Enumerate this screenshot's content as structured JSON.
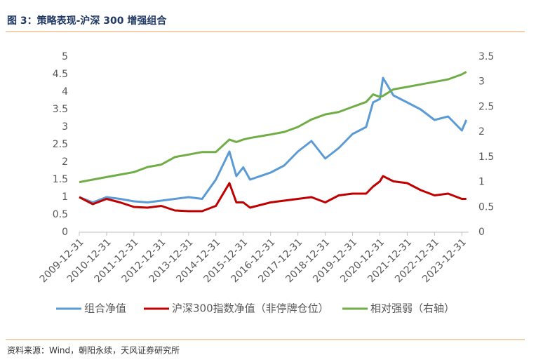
{
  "header": {
    "title": "图 3：策略表现-沪深 300 增强组合"
  },
  "footer": {
    "source": "资料来源：Wind，朝阳永续，天风证券研究所"
  },
  "chart_data": {
    "type": "line",
    "x": [
      "2009-12-31",
      "2010-06-30",
      "2010-12-31",
      "2011-06-30",
      "2011-12-31",
      "2012-06-30",
      "2012-12-31",
      "2013-06-30",
      "2013-12-31",
      "2014-06-30",
      "2014-12-31",
      "2015-06-30",
      "2015-09-30",
      "2015-12-31",
      "2016-03-31",
      "2016-12-31",
      "2017-06-30",
      "2017-12-31",
      "2018-06-30",
      "2018-12-31",
      "2019-06-30",
      "2019-12-31",
      "2020-06-30",
      "2020-09-30",
      "2020-12-31",
      "2021-02-10",
      "2021-06-30",
      "2021-12-31",
      "2022-06-30",
      "2022-12-31",
      "2023-06-30",
      "2023-12-31",
      "2024-02-29"
    ],
    "series": [
      {
        "name": "组合净值",
        "color": "#5b9bd5",
        "values": [
          1.0,
          0.85,
          1.0,
          0.95,
          0.88,
          0.85,
          0.9,
          0.95,
          1.0,
          0.95,
          1.5,
          2.3,
          1.6,
          1.85,
          1.5,
          1.7,
          1.9,
          2.3,
          2.6,
          2.1,
          2.4,
          2.8,
          3.0,
          3.7,
          3.8,
          4.4,
          3.9,
          3.7,
          3.5,
          3.2,
          3.3,
          2.9,
          3.2
        ]
      },
      {
        "name": "沪深300指数净值（非停牌仓位）",
        "color": "#c00000",
        "values": [
          1.0,
          0.8,
          0.95,
          0.85,
          0.72,
          0.7,
          0.75,
          0.62,
          0.6,
          0.6,
          0.75,
          1.4,
          0.85,
          0.85,
          0.7,
          0.85,
          0.9,
          0.95,
          1.0,
          0.85,
          1.05,
          1.1,
          1.1,
          1.3,
          1.45,
          1.6,
          1.45,
          1.4,
          1.2,
          1.05,
          1.1,
          0.95,
          0.95
        ]
      },
      {
        "name": "相对强弱（右轴）",
        "color": "#70ad47",
        "axis": "y2",
        "values": [
          1.0,
          1.05,
          1.1,
          1.15,
          1.2,
          1.3,
          1.35,
          1.5,
          1.55,
          1.6,
          1.6,
          1.85,
          1.8,
          1.85,
          1.88,
          1.95,
          2.0,
          2.1,
          2.25,
          2.35,
          2.4,
          2.5,
          2.6,
          2.75,
          2.7,
          2.72,
          2.85,
          2.9,
          2.95,
          3.0,
          3.05,
          3.15,
          3.2
        ]
      }
    ],
    "xlim": [
      "2009-12-31",
      "2024-03-31"
    ],
    "xticks": [
      "2009-12-31",
      "2010-12-31",
      "2011-12-31",
      "2012-12-31",
      "2013-12-31",
      "2014-12-31",
      "2015-12-31",
      "2016-12-31",
      "2017-12-31",
      "2018-12-31",
      "2019-12-31",
      "2020-12-31",
      "2021-12-31",
      "2022-12-31",
      "2023-12-31"
    ],
    "ylim": [
      0,
      5
    ],
    "yticks": [
      0,
      0.5,
      1,
      1.5,
      2,
      2.5,
      3,
      3.5,
      4,
      4.5,
      5
    ],
    "y2lim": [
      0,
      3.5
    ],
    "y2ticks": [
      0,
      0.5,
      1,
      1.5,
      2,
      2.5,
      3,
      3.5
    ],
    "legend": "bottom"
  }
}
